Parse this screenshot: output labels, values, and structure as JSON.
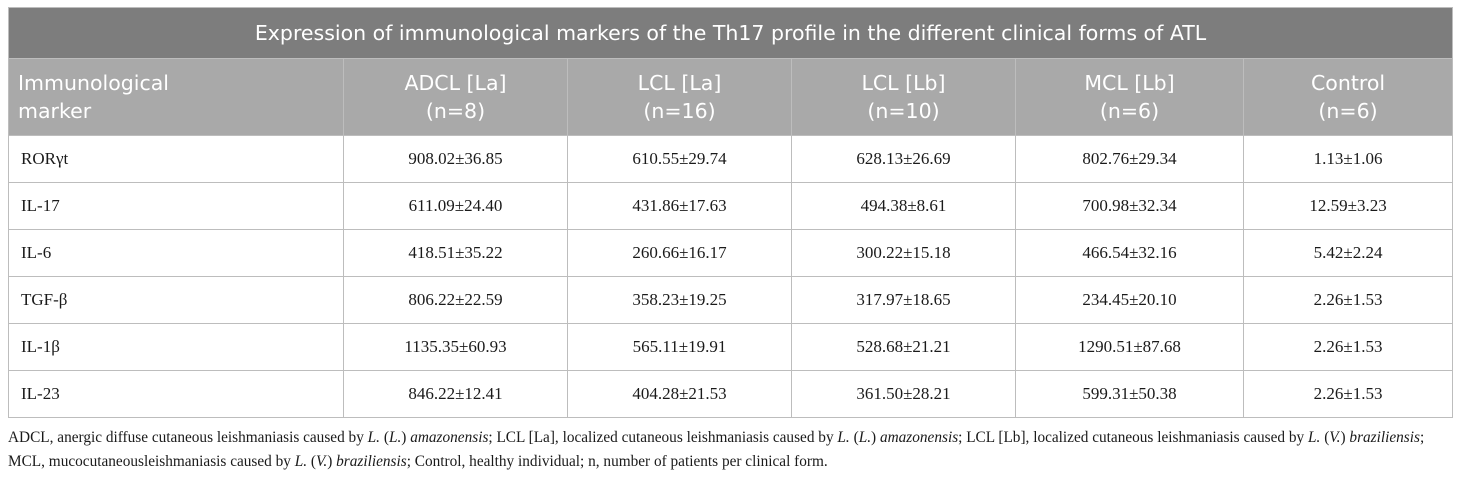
{
  "table": {
    "caption": "Expression of immunological markers of the Th17 profile in the different clinical forms of ATL",
    "headers": [
      {
        "line1": "Immunological",
        "line2": "marker"
      },
      {
        "line1": "ADCL [La]",
        "line2": "(n=8)"
      },
      {
        "line1": "LCL [La]",
        "line2": "(n=16)"
      },
      {
        "line1": "LCL [Lb]",
        "line2": "(n=10)"
      },
      {
        "line1": "MCL [Lb]",
        "line2": "(n=6)"
      },
      {
        "line1": "Control",
        "line2": "(n=6)"
      }
    ],
    "rows": [
      [
        "RORγt",
        "908.02±36.85",
        "610.55±29.74",
        "628.13±26.69",
        "802.76±29.34",
        "1.13±1.06"
      ],
      [
        "IL-17",
        "611.09±24.40",
        "431.86±17.63",
        "494.38±8.61",
        "700.98±32.34",
        "12.59±3.23"
      ],
      [
        "IL-6",
        "418.51±35.22",
        "260.66±16.17",
        "300.22±15.18",
        "466.54±32.16",
        "5.42±2.24"
      ],
      [
        "TGF-β",
        "806.22±22.59",
        "358.23±19.25",
        "317.97±18.65",
        "234.45±20.10",
        "2.26±1.53"
      ],
      [
        "IL-1β",
        "1135.35±60.93",
        "565.11±19.91",
        "528.68±21.21",
        "1290.51±87.68",
        "2.26±1.53"
      ],
      [
        "IL-23",
        "846.22±12.41",
        "404.28±21.53",
        "361.50±28.21",
        "599.31±50.38",
        "2.26±1.53"
      ]
    ]
  },
  "footnote": [
    {
      "t": "ADCL, anergic diffuse cutaneous leishmaniasis caused by ",
      "i": false
    },
    {
      "t": "L.",
      "i": true
    },
    {
      "t": " (",
      "i": false
    },
    {
      "t": "L.",
      "i": true
    },
    {
      "t": ") ",
      "i": false
    },
    {
      "t": "amazonensis",
      "i": true
    },
    {
      "t": "; LCL [La], localized cutaneous leishmaniasis caused by ",
      "i": false
    },
    {
      "t": "L.",
      "i": true
    },
    {
      "t": " (",
      "i": false
    },
    {
      "t": "L.",
      "i": true
    },
    {
      "t": ") ",
      "i": false
    },
    {
      "t": "amazonensis",
      "i": true
    },
    {
      "t": "; LCL [Lb], localized cutaneous leishmaniasis caused by ",
      "i": false
    },
    {
      "t": "L.",
      "i": true
    },
    {
      "t": " (",
      "i": false
    },
    {
      "t": "V.",
      "i": true
    },
    {
      "t": ") ",
      "i": false
    },
    {
      "t": "braziliensis",
      "i": true
    },
    {
      "t": "; MCL, mucocutaneousleishmaniasis caused by ",
      "i": false
    },
    {
      "t": "L.",
      "i": true
    },
    {
      "t": " (",
      "i": false
    },
    {
      "t": "V.",
      "i": true
    },
    {
      "t": ") ",
      "i": false
    },
    {
      "t": "braziliensis",
      "i": true
    },
    {
      "t": "; Control, healthy individual; n, number of patients per clinical form.",
      "i": false
    }
  ]
}
